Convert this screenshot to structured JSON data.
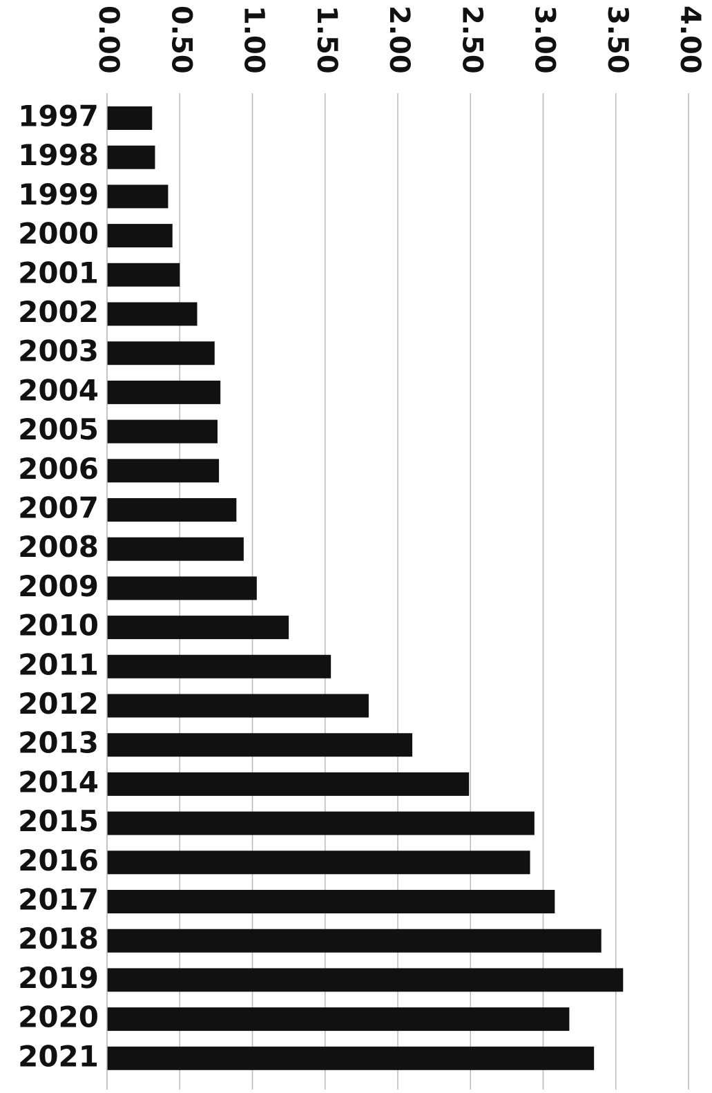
{
  "chart_data": {
    "type": "bar",
    "orientation": "horizontal",
    "categories": [
      "1997",
      "1998",
      "1999",
      "2000",
      "2001",
      "2002",
      "2003",
      "2004",
      "2005",
      "2006",
      "2007",
      "2008",
      "2009",
      "2010",
      "2011",
      "2012",
      "2013",
      "2014",
      "2015",
      "2016",
      "2017",
      "2018",
      "2019",
      "2020",
      "2021"
    ],
    "values": [
      0.31,
      0.33,
      0.42,
      0.45,
      0.5,
      0.62,
      0.74,
      0.78,
      0.76,
      0.77,
      0.89,
      0.94,
      1.03,
      1.25,
      1.54,
      1.8,
      2.1,
      2.49,
      2.94,
      2.91,
      3.08,
      3.4,
      3.55,
      3.18,
      3.35
    ],
    "x_ticks": [
      "0.00",
      "0.50",
      "1.00",
      "1.50",
      "2.00",
      "2.50",
      "3.00",
      "3.50",
      "4.00"
    ],
    "xlim": [
      0,
      4
    ],
    "grid": true,
    "bar_color": "#111111",
    "grid_color": "#b8b8b8",
    "title": "",
    "xlabel": "",
    "ylabel": ""
  }
}
